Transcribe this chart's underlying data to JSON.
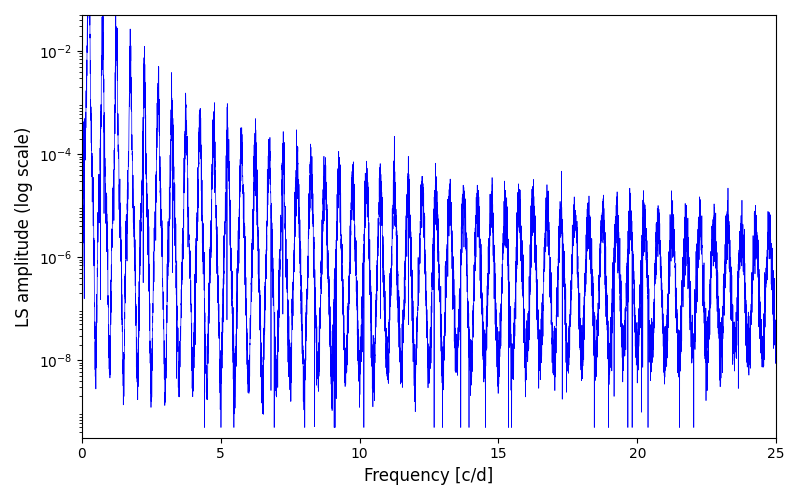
{
  "title": "",
  "xlabel": "Frequency [c/d]",
  "ylabel": "LS amplitude (log scale)",
  "xlim": [
    0,
    25
  ],
  "ylim_log": [
    -9.5,
    -1.3
  ],
  "line_color": "#0000FF",
  "line_width": 0.5,
  "yscale": "log",
  "yticks": [
    1e-08,
    1e-06,
    0.0001,
    0.01
  ],
  "xticks": [
    0,
    5,
    10,
    15,
    20,
    25
  ],
  "seed": 12345,
  "n_points": 8000,
  "freq_max": 25.0,
  "background_color": "#ffffff",
  "figsize": [
    8.0,
    5.0
  ],
  "dpi": 100
}
